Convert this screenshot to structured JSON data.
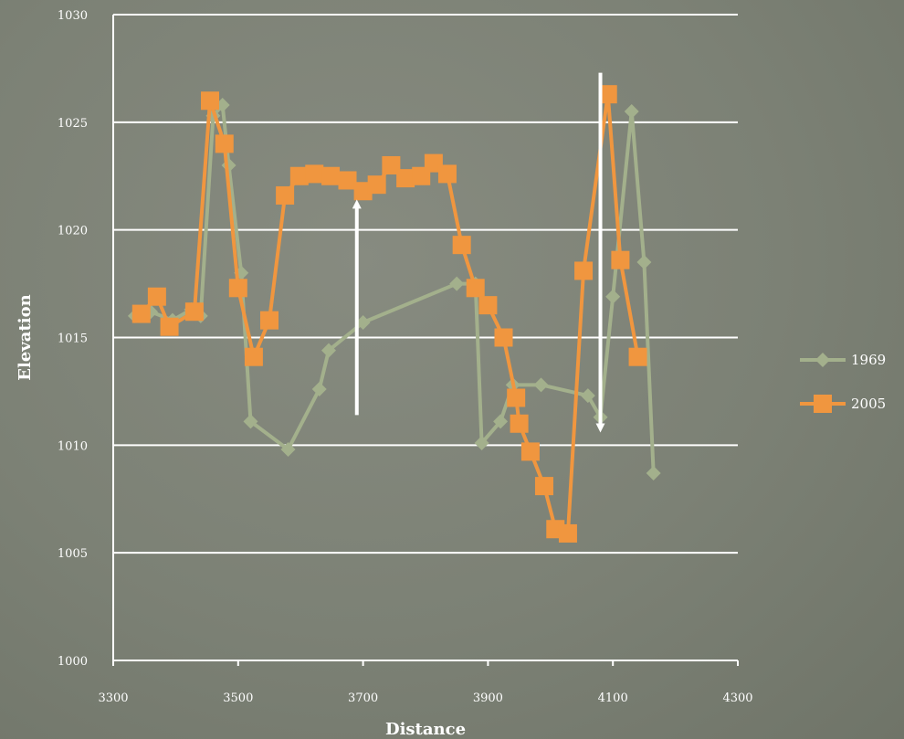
{
  "chart_data": {
    "type": "line",
    "title": "",
    "xlabel": "Distance",
    "ylabel": "Elevation",
    "xlim": [
      3300,
      4300
    ],
    "ylim": [
      1000,
      1030
    ],
    "xticks": [
      "3300",
      "3500",
      "3700",
      "3900",
      "4100",
      "4300"
    ],
    "yticks": [
      "1000",
      "1005",
      "1010",
      "1015",
      "1020",
      "1025",
      "1030"
    ],
    "grid": "horizontal",
    "legend_position": "right",
    "series": [
      {
        "name": "1969",
        "color": "#a3b08c",
        "marker": "diamond",
        "points": [
          [
            3335,
            1016.0
          ],
          [
            3360,
            1016.2
          ],
          [
            3395,
            1015.8
          ],
          [
            3425,
            1016.3
          ],
          [
            3440,
            1016.0
          ],
          [
            3460,
            1025.3
          ],
          [
            3475,
            1025.8
          ],
          [
            3485,
            1023.0
          ],
          [
            3505,
            1018.0
          ],
          [
            3520,
            1011.1
          ],
          [
            3580,
            1009.8
          ],
          [
            3630,
            1012.6
          ],
          [
            3645,
            1014.4
          ],
          [
            3700,
            1015.7
          ],
          [
            3850,
            1017.5
          ],
          [
            3880,
            1017.5
          ],
          [
            3890,
            1010.1
          ],
          [
            3920,
            1011.1
          ],
          [
            3940,
            1012.8
          ],
          [
            3985,
            1012.8
          ],
          [
            4060,
            1012.3
          ],
          [
            4080,
            1011.3
          ],
          [
            4100,
            1016.9
          ],
          [
            4130,
            1025.5
          ],
          [
            4150,
            1018.5
          ],
          [
            4165,
            1008.7
          ]
        ]
      },
      {
        "name": "2005",
        "color": "#f0963f",
        "marker": "square",
        "points": [
          [
            3345,
            1016.1
          ],
          [
            3370,
            1016.9
          ],
          [
            3390,
            1015.5
          ],
          [
            3430,
            1016.2
          ],
          [
            3455,
            1026.0
          ],
          [
            3478,
            1024.0
          ],
          [
            3500,
            1017.3
          ],
          [
            3525,
            1014.1
          ],
          [
            3550,
            1015.8
          ],
          [
            3575,
            1021.6
          ],
          [
            3598,
            1022.5
          ],
          [
            3622,
            1022.6
          ],
          [
            3648,
            1022.5
          ],
          [
            3675,
            1022.3
          ],
          [
            3700,
            1021.8
          ],
          [
            3722,
            1022.1
          ],
          [
            3745,
            1023.0
          ],
          [
            3768,
            1022.4
          ],
          [
            3793,
            1022.5
          ],
          [
            3813,
            1023.1
          ],
          [
            3835,
            1022.6
          ],
          [
            3858,
            1019.3
          ],
          [
            3880,
            1017.3
          ],
          [
            3900,
            1016.5
          ],
          [
            3925,
            1015.0
          ],
          [
            3945,
            1012.2
          ],
          [
            3950,
            1011.0
          ],
          [
            3968,
            1009.7
          ],
          [
            3990,
            1008.1
          ],
          [
            4008,
            1006.1
          ],
          [
            4028,
            1005.9
          ],
          [
            4053,
            1018.1
          ],
          [
            4092,
            1026.3
          ],
          [
            4112,
            1018.6
          ],
          [
            4140,
            1014.1
          ]
        ]
      }
    ],
    "annotations": [
      {
        "type": "arrow",
        "direction": "up",
        "x": 3690,
        "y_from": 1011.4,
        "y_to": 1021.2,
        "color": "#ffffff"
      },
      {
        "type": "arrow",
        "direction": "down",
        "x": 4080,
        "y_from": 1027.3,
        "y_to": 1010.8,
        "color": "#ffffff"
      }
    ]
  }
}
